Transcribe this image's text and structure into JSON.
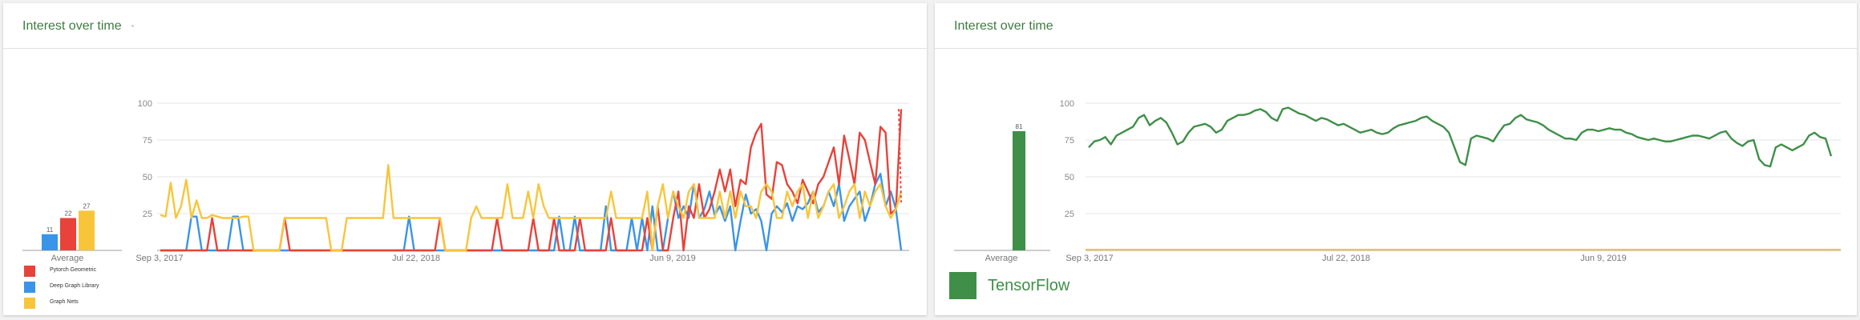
{
  "left_card": {
    "title": "Interest over time",
    "average_label": "Average",
    "legend": [
      {
        "name": "Pytorch Geometric",
        "color": "#e8423a"
      },
      {
        "name": "Deep Graph Library",
        "color": "#3a94e8"
      },
      {
        "name": "Graph Nets",
        "color": "#f8c53a"
      }
    ]
  },
  "right_card": {
    "title": "Interest over time",
    "average_label": "Average",
    "legend": [
      {
        "name": "TensorFlow",
        "color": "#3f8f48"
      }
    ]
  },
  "chart_data": [
    {
      "type": "bar",
      "title": "Average",
      "categories": [
        "Deep Graph Library",
        "Pytorch Geometric",
        "Graph Nets"
      ],
      "values": [
        11,
        22,
        27
      ],
      "colors": [
        "#3a94e8",
        "#e8423a",
        "#f8c53a"
      ],
      "ylim": [
        0,
        100
      ]
    },
    {
      "type": "line",
      "x_tick_labels": [
        "Sep 3, 2017",
        "Jul 22, 2018",
        "Jun 9, 2019"
      ],
      "y_ticks": [
        25,
        50,
        75,
        100
      ],
      "ylim": [
        0,
        100
      ],
      "grid": true,
      "series": [
        {
          "name": "Pytorch Geometric",
          "color": "#e8423a",
          "values": [
            0,
            0,
            0,
            0,
            0,
            0,
            0,
            0,
            0,
            0,
            22,
            0,
            0,
            0,
            0,
            0,
            0,
            0,
            0,
            0,
            0,
            0,
            0,
            0,
            22,
            0,
            0,
            0,
            0,
            0,
            0,
            0,
            0,
            0,
            0,
            0,
            0,
            0,
            0,
            0,
            0,
            0,
            0,
            0,
            0,
            0,
            0,
            0,
            0,
            0,
            0,
            0,
            0,
            0,
            22,
            0,
            0,
            0,
            0,
            0,
            0,
            0,
            0,
            0,
            0,
            22,
            0,
            0,
            0,
            0,
            0,
            0,
            22,
            0,
            0,
            0,
            22,
            0,
            0,
            0,
            0,
            22,
            0,
            0,
            0,
            0,
            0,
            22,
            0,
            0,
            0,
            0,
            0,
            0,
            22,
            0,
            30,
            0,
            0,
            22,
            40,
            0,
            30,
            22,
            45,
            22,
            28,
            40,
            55,
            40,
            55,
            30,
            48,
            45,
            70,
            80,
            86,
            38,
            35,
            60,
            58,
            45,
            40,
            32,
            48,
            40,
            32,
            45,
            50,
            60,
            70,
            45,
            78,
            62,
            45,
            80,
            75,
            60,
            45,
            84,
            80,
            25,
            28,
            96
          ]
        },
        {
          "name": "Deep Graph Library",
          "color": "#3a94e8",
          "values": [
            0,
            0,
            0,
            0,
            0,
            0,
            23,
            23,
            0,
            0,
            0,
            0,
            0,
            0,
            23,
            23,
            0,
            0,
            0,
            0,
            0,
            0,
            0,
            0,
            0,
            0,
            0,
            0,
            0,
            0,
            0,
            0,
            0,
            0,
            0,
            0,
            0,
            0,
            0,
            0,
            0,
            0,
            0,
            0,
            0,
            0,
            0,
            0,
            23,
            0,
            0,
            0,
            0,
            0,
            0,
            0,
            0,
            0,
            0,
            0,
            0,
            0,
            0,
            0,
            0,
            0,
            0,
            0,
            0,
            0,
            0,
            0,
            0,
            0,
            0,
            0,
            0,
            23,
            0,
            0,
            23,
            0,
            0,
            0,
            0,
            0,
            30,
            0,
            0,
            0,
            0,
            22,
            0,
            22,
            0,
            30,
            0,
            0,
            22,
            40,
            22,
            30,
            22,
            45,
            22,
            28,
            40,
            24,
            30,
            20,
            30,
            0,
            20,
            38,
            25,
            28,
            20,
            0,
            25,
            30,
            26,
            32,
            20,
            30,
            28,
            32,
            40,
            26,
            30,
            40,
            30,
            45,
            20,
            30,
            35,
            40,
            20,
            30,
            45,
            52,
            30,
            40,
            28,
            0
          ]
        },
        {
          "name": "Graph Nets",
          "color": "#f8c53a",
          "values": [
            24,
            23,
            46,
            22,
            30,
            48,
            22,
            34,
            22,
            22,
            24,
            23,
            22,
            22,
            22,
            22,
            23,
            23,
            0,
            0,
            0,
            0,
            0,
            0,
            22,
            22,
            22,
            22,
            22,
            22,
            22,
            22,
            22,
            0,
            0,
            0,
            22,
            22,
            22,
            22,
            22,
            22,
            22,
            22,
            58,
            22,
            22,
            22,
            22,
            22,
            22,
            22,
            22,
            22,
            22,
            0,
            0,
            0,
            0,
            0,
            22,
            30,
            22,
            22,
            22,
            22,
            22,
            45,
            22,
            22,
            22,
            40,
            22,
            45,
            30,
            22,
            22,
            22,
            22,
            22,
            22,
            22,
            22,
            22,
            22,
            22,
            22,
            40,
            22,
            22,
            22,
            22,
            22,
            22,
            40,
            0,
            30,
            45,
            22,
            40,
            30,
            22,
            40,
            45,
            22,
            22,
            22,
            22,
            40,
            22,
            40,
            22,
            40,
            30,
            30,
            22,
            40,
            45,
            40,
            22,
            22,
            40,
            30,
            40,
            45,
            22,
            40,
            22,
            30,
            40,
            45,
            22,
            30,
            40,
            45,
            22,
            40,
            30,
            40,
            45,
            30,
            22,
            28,
            40
          ]
        }
      ]
    },
    {
      "type": "bar",
      "title": "Average",
      "categories": [
        "TensorFlow"
      ],
      "values": [
        81
      ],
      "data_labels": [
        "81"
      ],
      "colors": [
        "#3f8f48"
      ],
      "ylim": [
        0,
        100
      ]
    },
    {
      "type": "line",
      "x_tick_labels": [
        "Sep 3, 2017",
        "Jul 22, 2018",
        "Jun 9, 2019"
      ],
      "y_ticks": [
        25,
        50,
        75,
        100
      ],
      "ylim": [
        0,
        100
      ],
      "grid": true,
      "series": [
        {
          "name": "TensorFlow",
          "color": "#3f8f48",
          "values": [
            70,
            74,
            75,
            77,
            72,
            78,
            80,
            82,
            84,
            90,
            92,
            85,
            88,
            90,
            87,
            80,
            72,
            74,
            80,
            84,
            85,
            86,
            84,
            80,
            82,
            88,
            90,
            92,
            92,
            93,
            95,
            96,
            94,
            90,
            88,
            96,
            97,
            95,
            93,
            92,
            90,
            88,
            90,
            89,
            87,
            85,
            86,
            84,
            82,
            80,
            81,
            82,
            80,
            79,
            80,
            83,
            85,
            86,
            87,
            88,
            90,
            91,
            88,
            86,
            84,
            80,
            70,
            60,
            58,
            76,
            78,
            77,
            76,
            74,
            80,
            85,
            86,
            90,
            92,
            89,
            88,
            87,
            85,
            82,
            80,
            78,
            76,
            76,
            75,
            80,
            82,
            82,
            81,
            82,
            83,
            82,
            82,
            80,
            79,
            77,
            76,
            75,
            76,
            75,
            74,
            74,
            75,
            76,
            77,
            78,
            78,
            77,
            76,
            78,
            80,
            81,
            76,
            73,
            71,
            74,
            75,
            62,
            58,
            57,
            70,
            72,
            70,
            68,
            70,
            72,
            78,
            80,
            77,
            76,
            64
          ]
        },
        {
          "name": "",
          "color": "#f8c53a",
          "values": [
            0,
            0
          ]
        }
      ]
    }
  ]
}
